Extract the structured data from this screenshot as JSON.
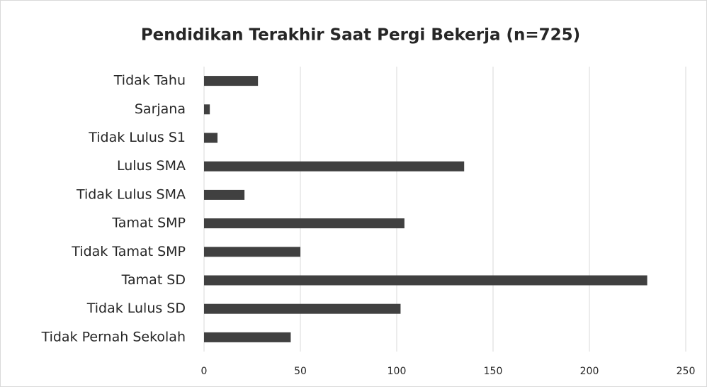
{
  "chart_data": {
    "type": "bar",
    "orientation": "horizontal",
    "title": "Pendidikan Terakhir Saat Pergi Bekerja (n=725)",
    "categories": [
      "Tidak Pernah Sekolah",
      "Tidak Lulus SD",
      "Tamat SD",
      "Tidak Tamat SMP",
      "Tamat SMP",
      "Tidak Lulus SMA",
      "Lulus SMA",
      "Tidak Lulus S1",
      "Sarjana",
      "Tidak Tahu"
    ],
    "values": [
      45,
      102,
      230,
      50,
      104,
      21,
      135,
      7,
      3,
      28
    ],
    "color": "#404040",
    "xlim": [
      0,
      250
    ],
    "xticks": [
      0,
      50,
      100,
      150,
      200,
      250
    ],
    "grid": true
  }
}
